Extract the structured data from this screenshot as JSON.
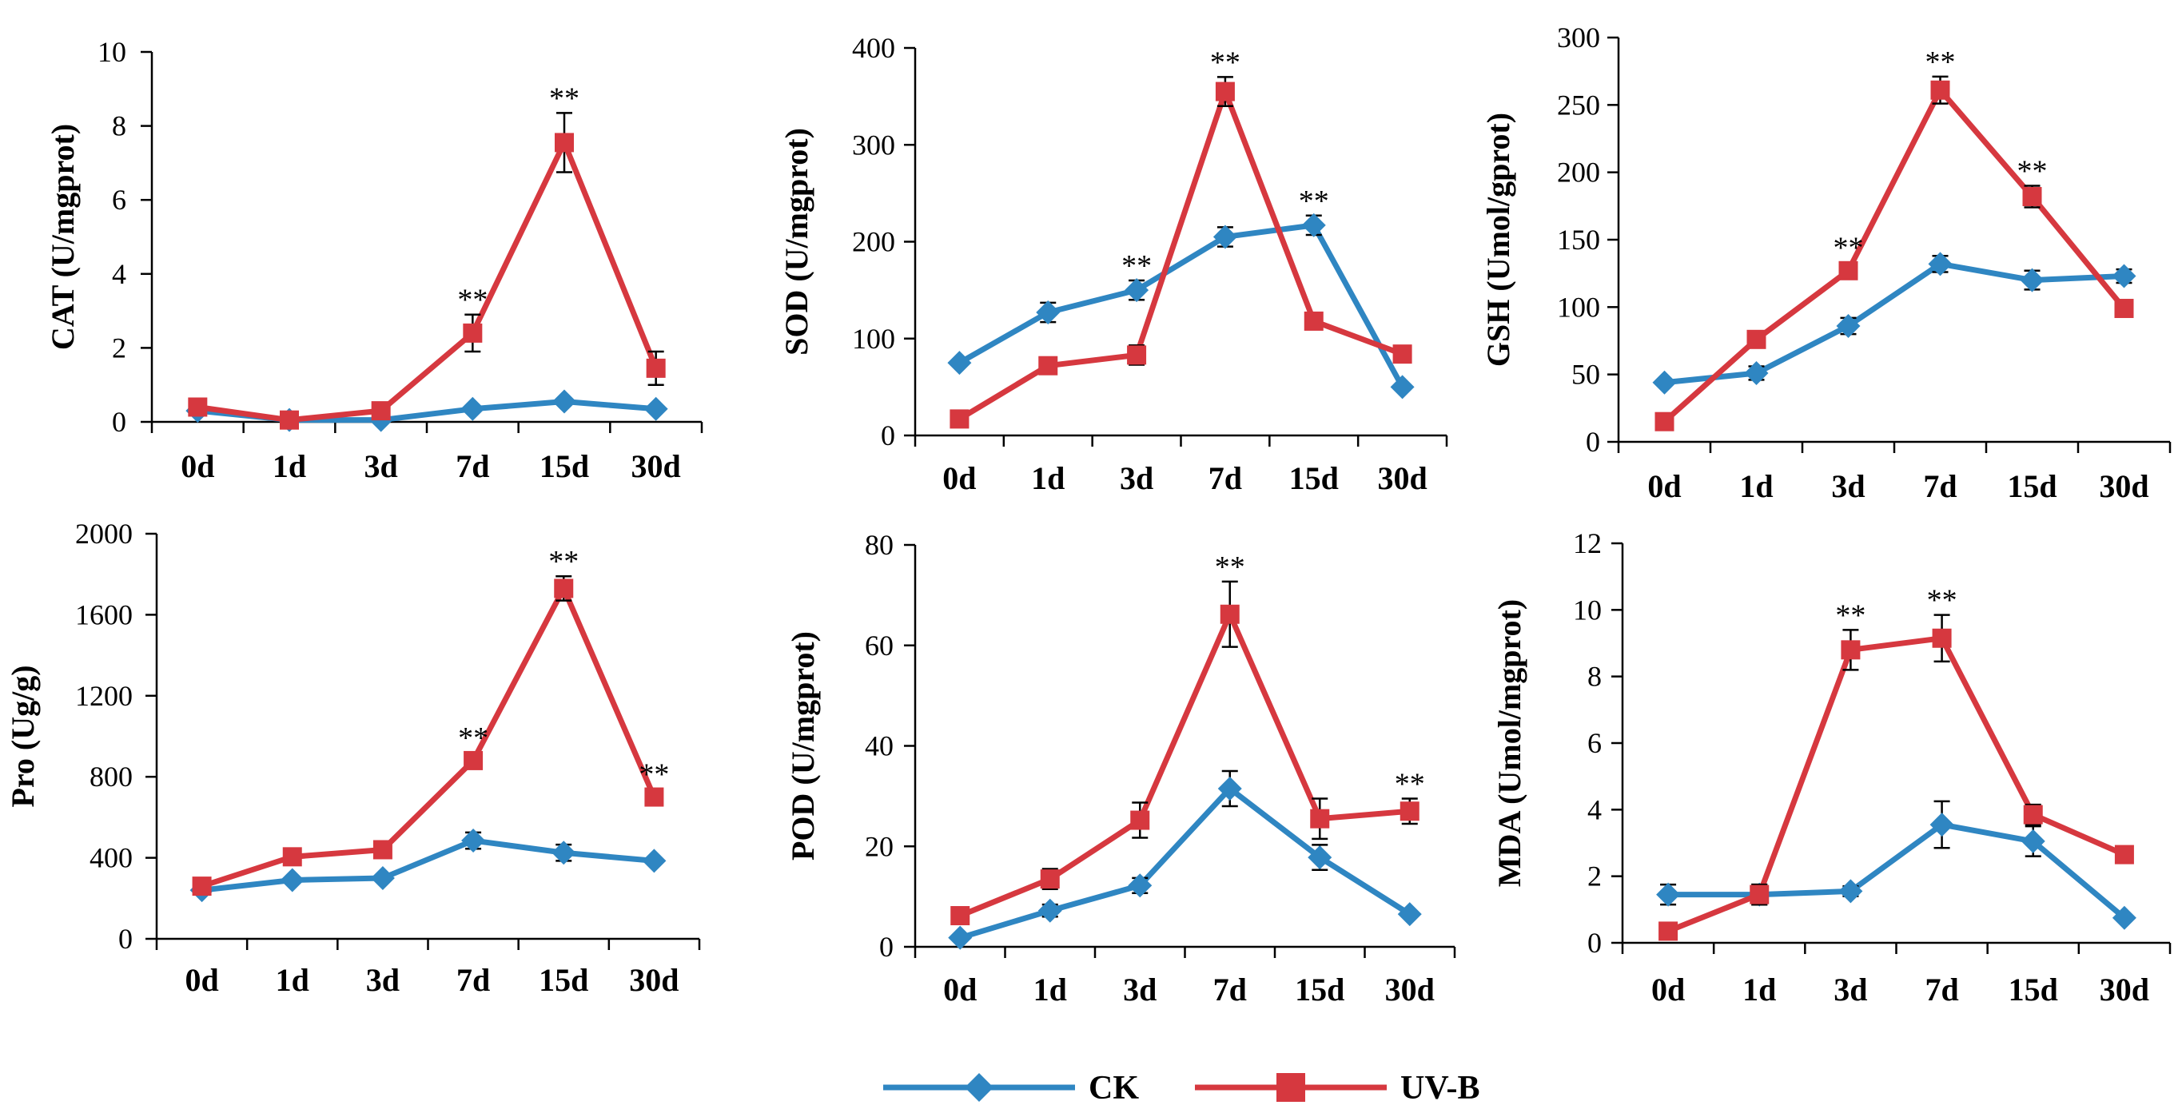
{
  "colors": {
    "ck": "#2F86C2",
    "uvb": "#D6383F"
  },
  "legend": [
    {
      "name": "CK",
      "marker": "diamond",
      "color": "#2F86C2"
    },
    {
      "name": "UV-B",
      "marker": "square",
      "color": "#D6383F"
    }
  ],
  "chart_data": [
    {
      "type": "line",
      "categories": [
        "0d",
        "1d",
        "3d",
        "7d",
        "15d",
        "30d"
      ],
      "ylabel": "CAT  (U/mgprot)",
      "ylim": [
        0,
        10
      ],
      "yticks": [
        0,
        2,
        4,
        6,
        8,
        10
      ],
      "ytick_labels": [
        "0",
        "2",
        "4",
        "6",
        "8",
        "10"
      ],
      "series": [
        {
          "name": "CK",
          "values": [
            0.3,
            0.05,
            0.05,
            0.35,
            0.55,
            0.35
          ],
          "errors": [
            0,
            0,
            0,
            0,
            0,
            0
          ]
        },
        {
          "name": "UV-B",
          "values": [
            0.4,
            0.05,
            0.3,
            2.4,
            7.55,
            1.45
          ],
          "errors": [
            0,
            0,
            0,
            0.5,
            0.8,
            0.45
          ]
        }
      ],
      "significance": [
        {
          "index": 3,
          "label": "**"
        },
        {
          "index": 4,
          "label": "**"
        }
      ]
    },
    {
      "type": "line",
      "categories": [
        "0d",
        "1d",
        "3d",
        "7d",
        "15d",
        "30d"
      ],
      "ylabel": "SOD  (U/mgprot)",
      "ylim": [
        0,
        400
      ],
      "yticks": [
        0,
        100,
        200,
        300,
        400
      ],
      "ytick_labels": [
        "0",
        "100",
        "200",
        "300",
        "400"
      ],
      "series": [
        {
          "name": "CK",
          "values": [
            75,
            127,
            150,
            205,
            217,
            50
          ],
          "errors": [
            0,
            10,
            10,
            10,
            10,
            0
          ]
        },
        {
          "name": "UV-B",
          "values": [
            17,
            72,
            83,
            355,
            118,
            84
          ],
          "errors": [
            0,
            0,
            10,
            15,
            0,
            0
          ]
        }
      ],
      "significance": [
        {
          "index": 2,
          "label": "**"
        },
        {
          "index": 3,
          "label": "**"
        },
        {
          "index": 4,
          "label": "**"
        }
      ]
    },
    {
      "type": "line",
      "categories": [
        "0d",
        "1d",
        "3d",
        "7d",
        "15d",
        "30d"
      ],
      "ylabel": "GSH  (Umol/gprot)",
      "ylim": [
        0,
        300
      ],
      "yticks": [
        0,
        50,
        100,
        150,
        200,
        250,
        300
      ],
      "ytick_labels": [
        "0",
        "50",
        "100",
        "150",
        "200",
        "250",
        "300"
      ],
      "series": [
        {
          "name": "CK",
          "values": [
            44,
            51,
            86,
            132,
            120,
            123
          ],
          "errors": [
            0,
            5,
            6,
            6,
            7,
            5
          ]
        },
        {
          "name": "UV-B",
          "values": [
            15,
            76,
            127,
            261,
            182,
            99
          ],
          "errors": [
            0,
            5,
            6,
            10,
            8,
            0
          ]
        }
      ],
      "significance": [
        {
          "index": 2,
          "label": "**"
        },
        {
          "index": 3,
          "label": "**"
        },
        {
          "index": 4,
          "label": "**"
        }
      ]
    },
    {
      "type": "line",
      "categories": [
        "0d",
        "1d",
        "3d",
        "7d",
        "15d",
        "30d"
      ],
      "ylabel": "Pro  (Ug/g)",
      "ylim": [
        0,
        2000
      ],
      "yticks": [
        0,
        400,
        800,
        1200,
        1600,
        2000
      ],
      "ytick_labels": [
        "0",
        "400",
        "800",
        "1200",
        "1600",
        "2000"
      ],
      "series": [
        {
          "name": "CK",
          "values": [
            240,
            290,
            300,
            485,
            425,
            385
          ],
          "errors": [
            0,
            0,
            0,
            40,
            40,
            0
          ]
        },
        {
          "name": "UV-B",
          "values": [
            260,
            405,
            440,
            880,
            1730,
            700
          ],
          "errors": [
            0,
            0,
            0,
            40,
            60,
            40
          ]
        }
      ],
      "significance": [
        {
          "index": 3,
          "label": "**"
        },
        {
          "index": 4,
          "label": "**"
        },
        {
          "index": 5,
          "label": "**"
        }
      ]
    },
    {
      "type": "line",
      "categories": [
        "0d",
        "1d",
        "3d",
        "7d",
        "15d",
        "30d"
      ],
      "ylabel": "POD  (U/mgprot)",
      "ylim": [
        0,
        80
      ],
      "yticks": [
        0,
        20,
        40,
        60,
        80
      ],
      "ytick_labels": [
        "0",
        "20",
        "40",
        "60",
        "80"
      ],
      "series": [
        {
          "name": "CK",
          "values": [
            1.8,
            7.2,
            12.2,
            31.5,
            17.8,
            6.5
          ],
          "errors": [
            0,
            1.2,
            1.5,
            3.5,
            2.5,
            0
          ]
        },
        {
          "name": "UV-B",
          "values": [
            6.2,
            13.5,
            25.2,
            66.2,
            25.5,
            27.0
          ],
          "errors": [
            0,
            2.0,
            3.5,
            6.5,
            4.0,
            2.5
          ]
        }
      ],
      "significance": [
        {
          "index": 3,
          "label": "**"
        },
        {
          "index": 5,
          "label": "**"
        }
      ]
    },
    {
      "type": "line",
      "categories": [
        "0d",
        "1d",
        "3d",
        "7d",
        "15d",
        "30d"
      ],
      "ylabel": "MDA (Umol/mgprot)",
      "ylim": [
        0,
        12
      ],
      "yticks": [
        0,
        2,
        4,
        6,
        8,
        10,
        12
      ],
      "ytick_labels": [
        "0",
        "2",
        "4",
        "6",
        "8",
        "10",
        "12"
      ],
      "series": [
        {
          "name": "CK",
          "values": [
            1.45,
            1.45,
            1.55,
            3.55,
            3.05,
            0.75
          ],
          "errors": [
            0.3,
            0.3,
            0.15,
            0.7,
            0.45,
            0
          ]
        },
        {
          "name": "UV-B",
          "values": [
            0.35,
            1.45,
            8.8,
            9.15,
            3.85,
            2.65
          ],
          "errors": [
            0,
            0.3,
            0.6,
            0.7,
            0.3,
            0.2
          ]
        }
      ],
      "significance": [
        {
          "index": 2,
          "label": "**"
        },
        {
          "index": 3,
          "label": "**"
        }
      ]
    }
  ]
}
